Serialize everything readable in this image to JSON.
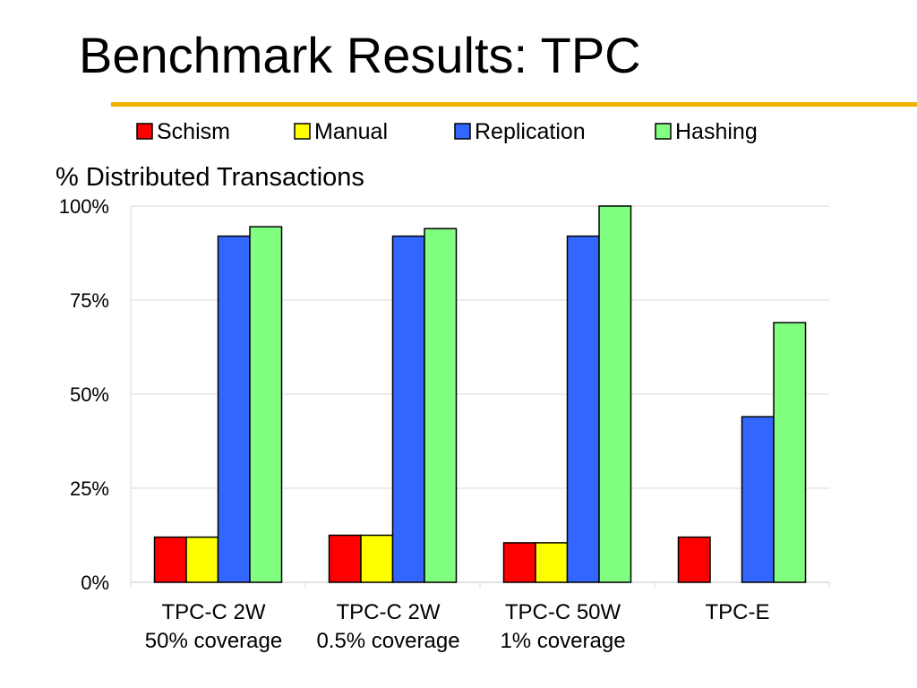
{
  "slide": {
    "title": "Benchmark Results: TPC"
  },
  "colors": {
    "accent_rule": "#f0b000"
  },
  "chart_data": {
    "type": "bar",
    "title": "% Distributed Transactions",
    "xlabel": "",
    "ylabel": "",
    "ylim": [
      0,
      100
    ],
    "y_ticks": [
      0,
      25,
      50,
      75,
      100
    ],
    "y_tick_labels": [
      "0%",
      "25%",
      "50%",
      "75%",
      "100%"
    ],
    "grid": true,
    "legend_position": "top",
    "categories": [
      [
        "TPC-C 2W",
        "50% coverage"
      ],
      [
        "TPC-C 2W",
        "0.5% coverage"
      ],
      [
        "TPC-C 50W",
        "1% coverage"
      ],
      [
        "TPC-E"
      ]
    ],
    "series": [
      {
        "name": "Schism",
        "color": "#ff0000",
        "values": [
          12,
          12.5,
          10.5,
          12
        ]
      },
      {
        "name": "Manual",
        "color": "#ffff00",
        "values": [
          12,
          12.5,
          10.5,
          null
        ]
      },
      {
        "name": "Replication",
        "color": "#3366ff",
        "values": [
          92,
          92,
          92,
          44
        ]
      },
      {
        "name": "Hashing",
        "color": "#80ff80",
        "values": [
          94.5,
          94,
          100,
          69
        ]
      }
    ]
  }
}
